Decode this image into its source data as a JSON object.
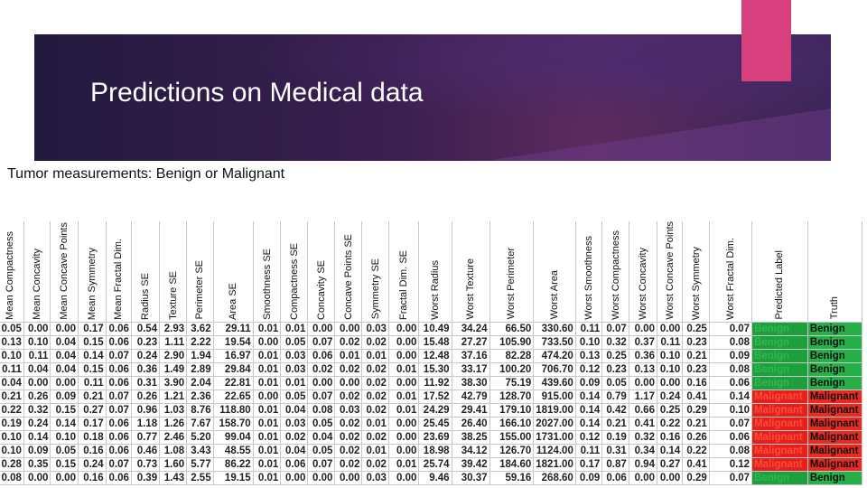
{
  "slide": {
    "title": "Predictions on Medical data",
    "subtitle": "Tumor measurements: Benign or Malignant"
  },
  "table": {
    "headers": [
      "Mean Compactness",
      "Mean Concavity",
      "Mean Concave Points",
      "Mean Symmetry",
      "Mean Fractal Dim.",
      "Radius SE",
      "Texture SE",
      "Perimeter SE",
      "Area SE",
      "Smoothness SE",
      "Compactness SE",
      "Concavity SE",
      "Concave Points SE",
      "Symmetry SE",
      "Fractal Dim. SE",
      "Worst Radius",
      "Worst Texture",
      "Worst Perimeter",
      "Worst Area",
      "Worst Smoothness",
      "Worst Compactness",
      "Worst Concavity",
      "Worst Concave Points",
      "Worst Symmetry",
      "Worst Fractal Dim.",
      "Predicted Label",
      "Truth"
    ],
    "rows": [
      [
        "0.05",
        "0.00",
        "0.00",
        "0.17",
        "0.06",
        "0.54",
        "2.93",
        "3.62",
        "29.11",
        "0.01",
        "0.01",
        "0.00",
        "0.00",
        "0.03",
        "0.00",
        "10.49",
        "34.24",
        "66.50",
        "330.60",
        "0.11",
        "0.07",
        "0.00",
        "0.00",
        "0.25",
        "0.07",
        "Benign",
        "Benign"
      ],
      [
        "0.13",
        "0.10",
        "0.04",
        "0.15",
        "0.06",
        "0.23",
        "1.11",
        "2.22",
        "19.54",
        "0.00",
        "0.05",
        "0.07",
        "0.02",
        "0.02",
        "0.00",
        "15.48",
        "27.27",
        "105.90",
        "733.50",
        "0.10",
        "0.32",
        "0.37",
        "0.11",
        "0.23",
        "0.08",
        "Benign",
        "Benign"
      ],
      [
        "0.10",
        "0.11",
        "0.04",
        "0.14",
        "0.07",
        "0.24",
        "2.90",
        "1.94",
        "16.97",
        "0.01",
        "0.03",
        "0.06",
        "0.01",
        "0.01",
        "0.00",
        "12.48",
        "37.16",
        "82.28",
        "474.20",
        "0.13",
        "0.25",
        "0.36",
        "0.10",
        "0.21",
        "0.09",
        "Benign",
        "Benign"
      ],
      [
        "0.11",
        "0.04",
        "0.04",
        "0.15",
        "0.06",
        "0.36",
        "1.49",
        "2.89",
        "29.84",
        "0.01",
        "0.03",
        "0.02",
        "0.02",
        "0.02",
        "0.01",
        "15.30",
        "33.17",
        "100.20",
        "706.70",
        "0.12",
        "0.23",
        "0.13",
        "0.10",
        "0.23",
        "0.08",
        "Benign",
        "Benign"
      ],
      [
        "0.04",
        "0.00",
        "0.00",
        "0.11",
        "0.06",
        "0.31",
        "3.90",
        "2.04",
        "22.81",
        "0.01",
        "0.01",
        "0.00",
        "0.00",
        "0.02",
        "0.00",
        "11.92",
        "38.30",
        "75.19",
        "439.60",
        "0.09",
        "0.05",
        "0.00",
        "0.00",
        "0.16",
        "0.06",
        "Benign",
        "Benign"
      ],
      [
        "0.21",
        "0.26",
        "0.09",
        "0.21",
        "0.07",
        "0.26",
        "1.21",
        "2.36",
        "22.65",
        "0.00",
        "0.05",
        "0.07",
        "0.02",
        "0.02",
        "0.01",
        "17.52",
        "42.79",
        "128.70",
        "915.00",
        "0.14",
        "0.79",
        "1.17",
        "0.24",
        "0.41",
        "0.14",
        "Malignant",
        "Malignant"
      ],
      [
        "0.22",
        "0.32",
        "0.15",
        "0.27",
        "0.07",
        "0.96",
        "1.03",
        "8.76",
        "118.80",
        "0.01",
        "0.04",
        "0.08",
        "0.03",
        "0.02",
        "0.01",
        "24.29",
        "29.41",
        "179.10",
        "1819.00",
        "0.14",
        "0.42",
        "0.66",
        "0.25",
        "0.29",
        "0.10",
        "Malignant",
        "Malignant"
      ],
      [
        "0.19",
        "0.24",
        "0.14",
        "0.17",
        "0.06",
        "1.18",
        "1.26",
        "7.67",
        "158.70",
        "0.01",
        "0.03",
        "0.05",
        "0.02",
        "0.01",
        "0.00",
        "25.45",
        "26.40",
        "166.10",
        "2027.00",
        "0.14",
        "0.21",
        "0.41",
        "0.22",
        "0.21",
        "0.07",
        "Malignant",
        "Malignant"
      ],
      [
        "0.10",
        "0.14",
        "0.10",
        "0.18",
        "0.06",
        "0.77",
        "2.46",
        "5.20",
        "99.04",
        "0.01",
        "0.02",
        "0.04",
        "0.02",
        "0.02",
        "0.00",
        "23.69",
        "38.25",
        "155.00",
        "1731.00",
        "0.12",
        "0.19",
        "0.32",
        "0.16",
        "0.26",
        "0.06",
        "Malignant",
        "Malignant"
      ],
      [
        "0.10",
        "0.09",
        "0.05",
        "0.16",
        "0.06",
        "0.46",
        "1.08",
        "3.43",
        "48.55",
        "0.01",
        "0.04",
        "0.05",
        "0.02",
        "0.01",
        "0.00",
        "18.98",
        "34.12",
        "126.70",
        "1124.00",
        "0.11",
        "0.31",
        "0.34",
        "0.14",
        "0.22",
        "0.08",
        "Malignant",
        "Malignant"
      ],
      [
        "0.28",
        "0.35",
        "0.15",
        "0.24",
        "0.07",
        "0.73",
        "1.60",
        "5.77",
        "86.22",
        "0.01",
        "0.06",
        "0.07",
        "0.02",
        "0.02",
        "0.01",
        "25.74",
        "39.42",
        "184.60",
        "1821.00",
        "0.17",
        "0.87",
        "0.94",
        "0.27",
        "0.41",
        "0.12",
        "Malignant",
        "Malignant"
      ],
      [
        "0.08",
        "0.00",
        "0.00",
        "0.16",
        "0.06",
        "0.39",
        "1.43",
        "2.55",
        "19.15",
        "0.01",
        "0.00",
        "0.00",
        "0.00",
        "0.03",
        "0.00",
        "9.46",
        "30.37",
        "59.16",
        "268.60",
        "0.09",
        "0.06",
        "0.00",
        "0.00",
        "0.29",
        "0.07",
        "Benign",
        "Benign"
      ]
    ]
  }
}
